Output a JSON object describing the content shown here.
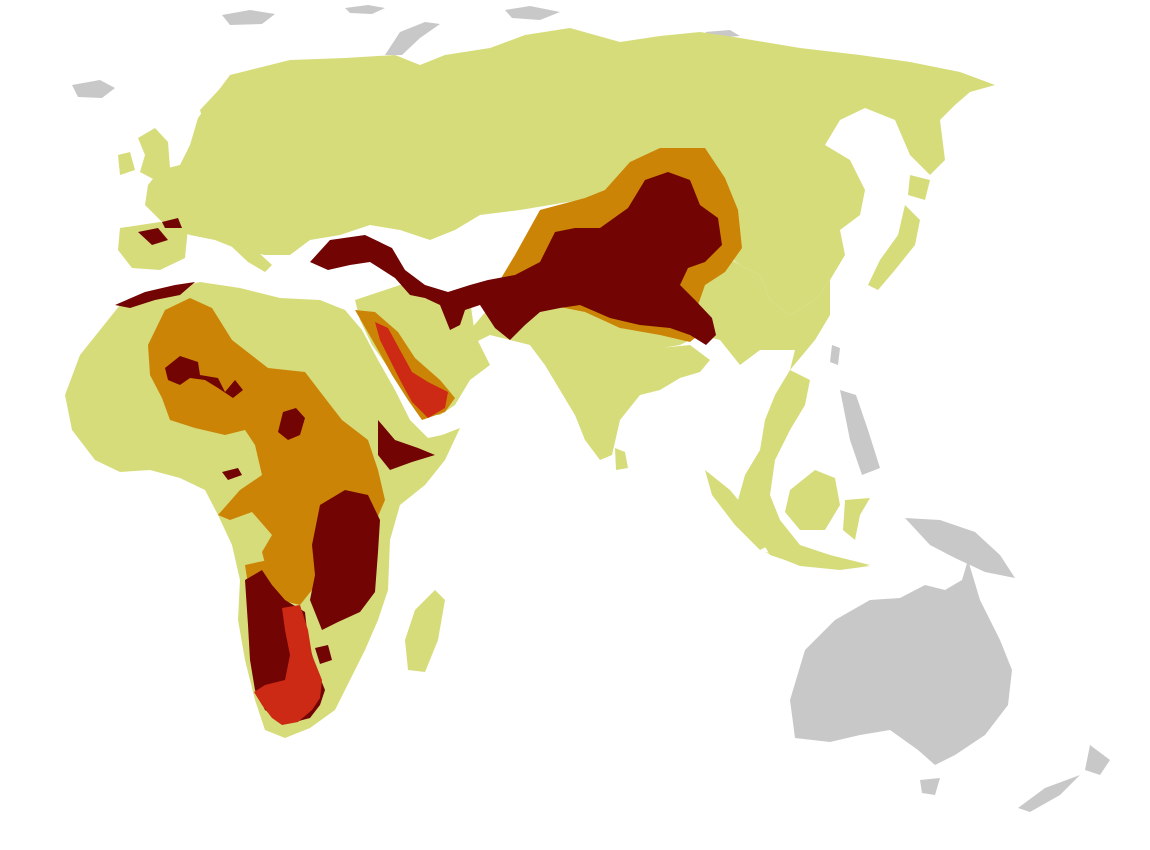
{
  "map": {
    "colors": {
      "background": "#ffffff",
      "outside_region": "#c8c8c8",
      "historic_range": "#d6dc7a",
      "range_level_2": "#cc8407",
      "range_level_3": "#720404",
      "range_level_4": "#cc2a14"
    },
    "layers": [
      "outside-region-landmass",
      "historic-range",
      "range-level-2",
      "range-level-3",
      "range-level-4"
    ]
  }
}
